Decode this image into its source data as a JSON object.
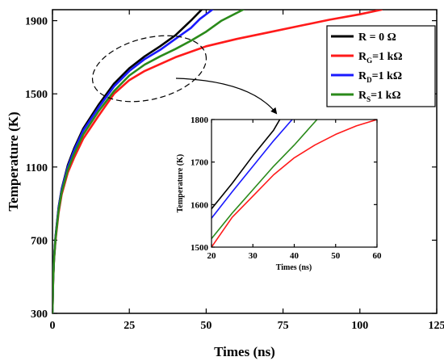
{
  "chart_data": [
    {
      "type": "line",
      "xlabel": "Times (ns)",
      "ylabel": "Temperature (K)",
      "xlim": [
        0,
        125
      ],
      "ylim": [
        300,
        1960
      ],
      "xticks": [
        "0",
        "25",
        "50",
        "75",
        "100",
        "125"
      ],
      "yticks": [
        "300",
        "700",
        "1100",
        "1500",
        "1900"
      ],
      "legend_position": "top-right",
      "series": [
        {
          "name": "R = 0 Ω",
          "color": "#000000",
          "x": [
            0,
            0.2,
            0.5,
            1,
            2,
            3,
            5,
            7,
            10,
            15,
            20,
            25,
            30,
            35,
            40,
            45,
            48.5
          ],
          "y": [
            300,
            480,
            600,
            720,
            880,
            980,
            1110,
            1200,
            1310,
            1440,
            1555,
            1640,
            1705,
            1760,
            1820,
            1900,
            1960
          ]
        },
        {
          "name": "R_G=1 kΩ",
          "color": "#ff1a1a",
          "x": [
            0,
            0.2,
            0.5,
            1,
            2,
            3,
            5,
            7,
            10,
            15,
            20,
            25,
            30,
            40,
            50,
            60,
            70,
            80,
            90,
            100,
            107
          ],
          "y": [
            300,
            470,
            590,
            700,
            850,
            950,
            1070,
            1150,
            1255,
            1380,
            1500,
            1575,
            1625,
            1700,
            1760,
            1800,
            1835,
            1870,
            1905,
            1935,
            1960
          ]
        },
        {
          "name": "R_D=1 kΩ",
          "color": "#1a1aff",
          "x": [
            0,
            0.2,
            0.5,
            1,
            2,
            3,
            5,
            7,
            10,
            15,
            20,
            25,
            30,
            35,
            40,
            45,
            48,
            52
          ],
          "y": [
            300,
            478,
            598,
            715,
            875,
            975,
            1100,
            1190,
            1300,
            1425,
            1540,
            1625,
            1690,
            1740,
            1800,
            1860,
            1910,
            1960
          ]
        },
        {
          "name": "R_S=1 kΩ",
          "color": "#2a8a1a",
          "x": [
            0,
            0.2,
            0.5,
            1,
            2,
            3,
            5,
            7,
            10,
            15,
            20,
            25,
            30,
            35,
            40,
            45,
            50,
            55,
            62
          ],
          "y": [
            300,
            474,
            594,
            708,
            862,
            962,
            1085,
            1170,
            1278,
            1405,
            1515,
            1600,
            1660,
            1705,
            1745,
            1790,
            1840,
            1900,
            1960
          ]
        }
      ]
    },
    {
      "type": "line",
      "xlabel": "Times (ns)",
      "ylabel": "Temperature (K)",
      "xlim": [
        20,
        60
      ],
      "ylim": [
        1500,
        1800
      ],
      "xticks": [
        "20",
        "30",
        "40",
        "50",
        "60"
      ],
      "yticks": [
        "1500",
        "1600",
        "1700",
        "1800"
      ],
      "series": [
        {
          "name": "R = 0 Ω",
          "color": "#000000",
          "x": [
            20,
            25,
            30,
            35,
            36.5
          ],
          "y": [
            1590,
            1650,
            1715,
            1775,
            1800
          ]
        },
        {
          "name": "R_G=1 kΩ",
          "color": "#ff1a1a",
          "x": [
            20,
            25,
            30,
            35,
            40,
            45,
            50,
            55,
            60
          ],
          "y": [
            1500,
            1570,
            1620,
            1670,
            1710,
            1740,
            1765,
            1785,
            1800
          ]
        },
        {
          "name": "R_D=1 kΩ",
          "color": "#1a1aff",
          "x": [
            20,
            25,
            30,
            35,
            39.5
          ],
          "y": [
            1568,
            1630,
            1690,
            1750,
            1800
          ]
        },
        {
          "name": "R_S=1 kΩ",
          "color": "#2a8a1a",
          "x": [
            20,
            25,
            30,
            35,
            40,
            45.5
          ],
          "y": [
            1520,
            1580,
            1635,
            1690,
            1740,
            1800
          ]
        }
      ]
    }
  ],
  "legend": [
    {
      "main": "R = 0 Ω",
      "sub": "",
      "rest": ""
    },
    {
      "main": "R",
      "sub": "G",
      "rest": "=1 kΩ"
    },
    {
      "main": "R",
      "sub": "D",
      "rest": "=1 kΩ"
    },
    {
      "main": "R",
      "sub": "S",
      "rest": "=1 kΩ"
    }
  ]
}
